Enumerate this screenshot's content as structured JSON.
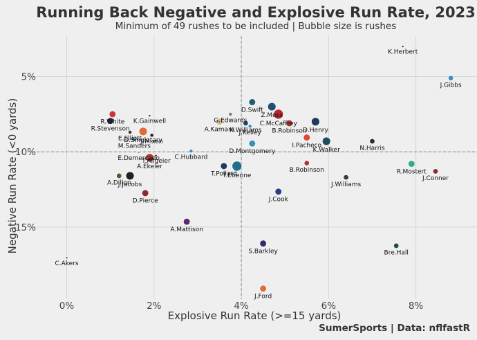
{
  "chart_data": {
    "type": "scatter",
    "title": "Running Back Negative and Explosive Run Rate, 2023",
    "subtitle": "Minimum of 49 rushes to be included | Bubble size is rushes",
    "xlabel": "Explosive Run Rate (>=15 yards)",
    "ylabel": "Negative Run Rate (<0 yards)",
    "credit": "SumerSports | Data: nflfastR",
    "xlim": [
      -0.8,
      9.4
    ],
    "ylim": [
      19.8,
      2.3
    ],
    "y_inverted": true,
    "x_ticks": [
      {
        "value": 0,
        "label": "0%"
      },
      {
        "value": 2,
        "label": "2%"
      },
      {
        "value": 4,
        "label": "4%"
      },
      {
        "value": 6,
        "label": "6%"
      },
      {
        "value": 8,
        "label": "8%"
      }
    ],
    "y_ticks": [
      {
        "value": 5,
        "label": "5%"
      },
      {
        "value": 10,
        "label": "10%"
      },
      {
        "value": 15,
        "label": "15%"
      }
    ],
    "reference_lines": {
      "x": 4.0,
      "y": 10.0
    },
    "points": [
      {
        "name": "K.Herbert",
        "x": 7.7,
        "y": 3.0,
        "rushes": 0,
        "color": "#333333"
      },
      {
        "name": "J.Gibbs",
        "x": 8.8,
        "y": 5.1,
        "rushes": 2,
        "color": "#3a8fb7"
      },
      {
        "name": "D.Swift",
        "x": 4.25,
        "y": 6.7,
        "rushes": 3,
        "color": "#1f5e6e"
      },
      {
        "name": "Z.Moss",
        "x": 4.7,
        "y": 7.0,
        "rushes": 4,
        "color": "#1f4e79"
      },
      {
        "name": "C.McCaffrey",
        "x": 4.85,
        "y": 7.5,
        "rushes": 5,
        "color": "#b5282d"
      },
      {
        "name": "D.Henry",
        "x": 5.7,
        "y": 8.0,
        "rushes": 4,
        "color": "#1e3a5f"
      },
      {
        "name": "B.Robinson",
        "x": 5.1,
        "y": 8.1,
        "rushes": 3,
        "color": "#a23a33"
      },
      {
        "name": "R.White",
        "x": 1.05,
        "y": 7.5,
        "rushes": 3,
        "color": "#c8363a"
      },
      {
        "name": "K.Gainwell",
        "x": 1.9,
        "y": 7.6,
        "rushes": 0,
        "color": "#222222"
      },
      {
        "name": "G.Edwards",
        "x": 3.75,
        "y": 7.5,
        "rushes": 1,
        "color": "#7a7a7a"
      },
      {
        "name": "K.Williams",
        "x": 4.1,
        "y": 8.1,
        "rushes": 2,
        "color": "#2c3e6b"
      },
      {
        "name": "R.Stevenson",
        "x": 1.0,
        "y": 7.95,
        "rushes": 3,
        "color": "#2a2a44"
      },
      {
        "name": "D.Singletary",
        "x": 1.75,
        "y": 8.65,
        "rushes": 4,
        "color": "#e06a3a"
      },
      {
        "name": "A.Kamara",
        "x": 3.5,
        "y": 8.0,
        "rushes": 3,
        "color": "#d4b98a"
      },
      {
        "name": "J.Kelley",
        "x": 4.2,
        "y": 8.3,
        "rushes": 1,
        "color": "#3a8fb7"
      },
      {
        "name": "E.Elliott",
        "x": 1.45,
        "y": 8.7,
        "rushes": 1,
        "color": "#333333"
      },
      {
        "name": "J.Mixon",
        "x": 1.95,
        "y": 8.9,
        "rushes": 1,
        "color": "#222222"
      },
      {
        "name": "I.Pacheco",
        "x": 5.5,
        "y": 9.05,
        "rushes": 3,
        "color": "#e0453a"
      },
      {
        "name": "N.Harris",
        "x": 7.0,
        "y": 9.3,
        "rushes": 2,
        "color": "#2b2b2b"
      },
      {
        "name": "K.Walker",
        "x": 5.95,
        "y": 9.3,
        "rushes": 4,
        "color": "#1f4e5a"
      },
      {
        "name": "M.Sanders",
        "x": 1.55,
        "y": 9.2,
        "rushes": 1,
        "color": "#3a8fb7"
      },
      {
        "name": "C.Hubbard",
        "x": 2.85,
        "y": 9.95,
        "rushes": 1,
        "color": "#3a8fb7"
      },
      {
        "name": "D.Montgomery",
        "x": 4.25,
        "y": 9.45,
        "rushes": 3,
        "color": "#3a8fb7"
      },
      {
        "name": "E.Demercado",
        "x": 1.65,
        "y": 10.05,
        "rushes": 0,
        "color": "#3aa88f"
      },
      {
        "name": "A.Ekeler",
        "x": 1.9,
        "y": 10.4,
        "rushes": 4,
        "color": "#a23a33"
      },
      {
        "name": "T.Allgeier",
        "x": 2.05,
        "y": 10.25,
        "rushes": 0,
        "color": "#b5282d"
      },
      {
        "name": "T.Pollard",
        "x": 3.6,
        "y": 10.95,
        "rushes": 3,
        "color": "#1f3a5f"
      },
      {
        "name": "T.Etienne",
        "x": 3.9,
        "y": 10.95,
        "rushes": 5,
        "color": "#1f6e8c"
      },
      {
        "name": "B.Robinson",
        "x": 5.5,
        "y": 10.75,
        "rushes": 2,
        "color": "#a23a33"
      },
      {
        "name": "R.Mostert",
        "x": 7.9,
        "y": 10.8,
        "rushes": 3,
        "color": "#3aa88f"
      },
      {
        "name": "J.Conner",
        "x": 8.45,
        "y": 11.3,
        "rushes": 2,
        "color": "#8a2a33"
      },
      {
        "name": "J.Williams",
        "x": 6.4,
        "y": 11.7,
        "rushes": 2,
        "color": "#2f3e4a"
      },
      {
        "name": "J.Jacobs",
        "x": 1.45,
        "y": 11.6,
        "rushes": 4,
        "color": "#222222"
      },
      {
        "name": "A.Dillon",
        "x": 1.2,
        "y": 11.6,
        "rushes": 2,
        "color": "#4a5a2a"
      },
      {
        "name": "J.Cook",
        "x": 4.85,
        "y": 12.65,
        "rushes": 3,
        "color": "#2c3e8a"
      },
      {
        "name": "D.Pierce",
        "x": 1.8,
        "y": 12.75,
        "rushes": 3,
        "color": "#8a2a33"
      },
      {
        "name": "A.Mattison",
        "x": 2.75,
        "y": 14.65,
        "rushes": 3,
        "color": "#5a2a6e"
      },
      {
        "name": "S.Barkley",
        "x": 4.5,
        "y": 16.1,
        "rushes": 3,
        "color": "#3a2a6e"
      },
      {
        "name": "Bre.Hall",
        "x": 7.55,
        "y": 16.25,
        "rushes": 2,
        "color": "#1f4e3a"
      },
      {
        "name": "C.Akers",
        "x": 0.0,
        "y": 17.05,
        "rushes": 0,
        "color": "#8a2a33"
      },
      {
        "name": "J.Ford",
        "x": 4.5,
        "y": 19.1,
        "rushes": 3,
        "color": "#e06a3a"
      }
    ]
  }
}
